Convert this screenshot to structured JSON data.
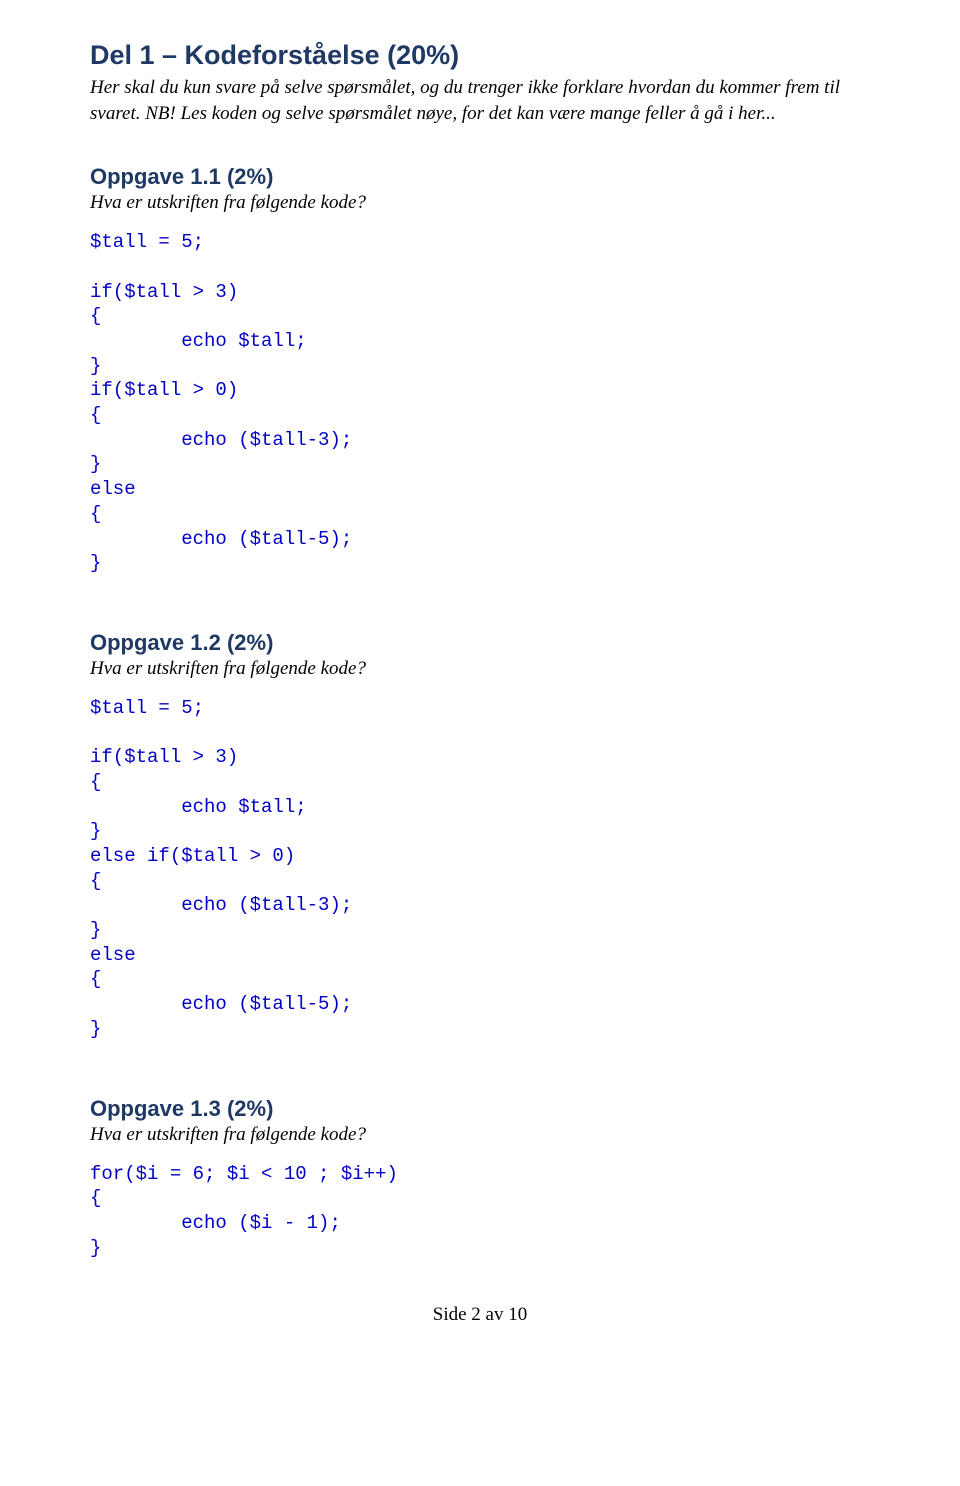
{
  "colors": {
    "heading": "#1f3864",
    "code": "#0000c8",
    "body": "#000000",
    "background": "#ffffff"
  },
  "fonts": {
    "heading_family": "Arial",
    "body_family": "Times New Roman",
    "code_family": "Courier New",
    "section_title_size_pt": 20,
    "task_title_size_pt": 16,
    "body_size_pt": 14,
    "code_size_pt": 14
  },
  "section": {
    "title": "Del 1 – Kodeforståelse (20%)",
    "intro": "Her skal du kun svare på selve spørsmålet, og du trenger ikke forklare hvordan du kommer frem til svaret. NB! Les koden og selve spørsmålet nøye, for det kan være mange feller å gå i her..."
  },
  "tasks": [
    {
      "title": "Oppgave 1.1 (2%)",
      "question": "Hva er utskriften fra følgende kode?",
      "code": "$tall = 5;\n\nif($tall > 3)\n{\n        echo $tall;\n}\nif($tall > 0)\n{\n        echo ($tall-3);\n}\nelse\n{\n        echo ($tall-5);\n}"
    },
    {
      "title": "Oppgave 1.2 (2%)",
      "question": "Hva er utskriften fra følgende kode?",
      "code": "$tall = 5;\n\nif($tall > 3)\n{\n        echo $tall;\n}\nelse if($tall > 0)\n{\n        echo ($tall-3);\n}\nelse\n{\n        echo ($tall-5);\n}"
    },
    {
      "title": "Oppgave 1.3 (2%)",
      "question": "Hva er utskriften fra følgende kode?",
      "code": "for($i = 6; $i < 10 ; $i++)\n{\n        echo ($i - 1);\n}"
    }
  ],
  "footer": "Side 2 av 10"
}
